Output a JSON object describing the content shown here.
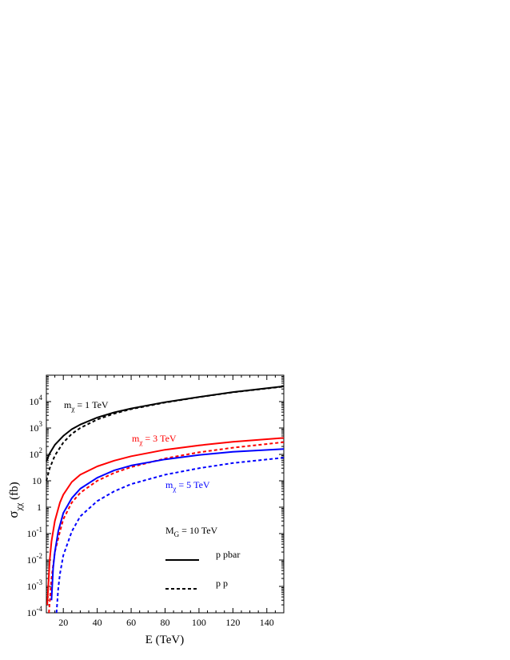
{
  "chart_data": {
    "type": "line",
    "title": "",
    "xlabel": "E (TeV)",
    "ylabel_main": "σ",
    "ylabel_sub": "χχ",
    "ylabel_unit": " (fb)",
    "xlim": [
      10,
      150
    ],
    "ylim": [
      0.0001,
      100000
    ],
    "yscale": "log",
    "x_ticks": [
      20,
      40,
      60,
      80,
      100,
      120,
      140
    ],
    "y_ticks": [
      {
        "value": 0.0001,
        "base": "10",
        "exp": "-4"
      },
      {
        "value": 0.001,
        "base": "10",
        "exp": "-3"
      },
      {
        "value": 0.01,
        "base": "10",
        "exp": "-2"
      },
      {
        "value": 0.1,
        "base": "10",
        "exp": "-1"
      },
      {
        "value": 1,
        "base": "1",
        "exp": ""
      },
      {
        "value": 10,
        "base": "10",
        "exp": ""
      },
      {
        "value": 100,
        "base": "10",
        "exp": "2"
      },
      {
        "value": 1000,
        "base": "10",
        "exp": "3"
      },
      {
        "value": 10000,
        "base": "10",
        "exp": "4"
      }
    ],
    "series": [
      {
        "key": "m1-ppbar",
        "color": "#000000",
        "style": "solid",
        "x": [
          10,
          12,
          15,
          20,
          25,
          30,
          40,
          50,
          60,
          80,
          100,
          120,
          150
        ],
        "y": [
          55,
          110,
          230,
          500,
          900,
          1350,
          2500,
          3900,
          5500,
          9500,
          15000,
          23000,
          38000
        ]
      },
      {
        "key": "m1-pp",
        "color": "#000000",
        "style": "dashed",
        "x": [
          10,
          12,
          15,
          20,
          25,
          30,
          40,
          50,
          60,
          80,
          100,
          120,
          150
        ],
        "y": [
          10,
          30,
          90,
          280,
          600,
          1000,
          2100,
          3500,
          5200,
          9200,
          14800,
          22500,
          37000
        ]
      },
      {
        "key": "m3-ppbar",
        "color": "#ff0000",
        "style": "solid",
        "x": [
          10.5,
          12,
          13,
          15,
          18,
          20,
          25,
          30,
          40,
          50,
          60,
          80,
          100,
          120,
          150
        ],
        "y": [
          0.0002,
          0.01,
          0.05,
          0.3,
          1.5,
          3,
          9,
          17,
          35,
          58,
          85,
          150,
          220,
          300,
          420
        ]
      },
      {
        "key": "m3-pp",
        "color": "#ff0000",
        "style": "dashed",
        "x": [
          11.5,
          13,
          15,
          18,
          20,
          25,
          30,
          40,
          50,
          60,
          80,
          100,
          120,
          150
        ],
        "y": [
          0.0001,
          0.002,
          0.02,
          0.12,
          0.35,
          1.5,
          3.5,
          10,
          20,
          33,
          70,
          120,
          180,
          290
        ]
      },
      {
        "key": "m5-ppbar",
        "color": "#0000ff",
        "style": "solid",
        "x": [
          13,
          14,
          15,
          17,
          20,
          25,
          30,
          40,
          50,
          60,
          80,
          100,
          120,
          150
        ],
        "y": [
          0.0003,
          0.005,
          0.02,
          0.12,
          0.6,
          2.2,
          5,
          13,
          25,
          38,
          65,
          95,
          125,
          160
        ]
      },
      {
        "key": "m5-pp",
        "color": "#0000ff",
        "style": "dashed",
        "x": [
          16,
          17,
          18,
          20,
          25,
          30,
          40,
          50,
          60,
          80,
          100,
          120,
          150
        ],
        "y": [
          0.0001,
          0.0008,
          0.003,
          0.015,
          0.12,
          0.45,
          1.7,
          4,
          7.5,
          17,
          30,
          47,
          75
        ]
      }
    ],
    "annotations": [
      {
        "key": "m1",
        "main": "m",
        "sub": "χ",
        "rest": " = 1 TeV",
        "color": "#000000"
      },
      {
        "key": "m3",
        "main": "m",
        "sub": "χ",
        "rest": " = 3 TeV",
        "color": "#ff0000"
      },
      {
        "key": "m5",
        "main": "m",
        "sub": "χ",
        "rest": " = 5 TeV",
        "color": "#0000ff"
      },
      {
        "key": "mg",
        "main": "M",
        "sub": "G",
        "rest": " = 10 TeV",
        "color": "#000000"
      }
    ],
    "legend": [
      {
        "label": "p pbar",
        "style": "solid"
      },
      {
        "label": "p p",
        "style": "dashed"
      }
    ]
  }
}
